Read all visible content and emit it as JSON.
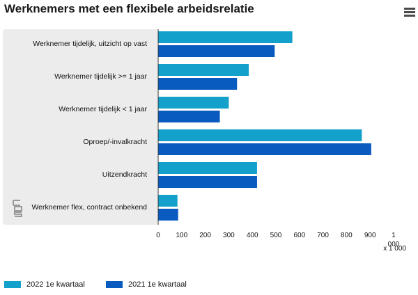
{
  "title": "Werknemers met een flexibele arbeidsrelatie",
  "menu_icon": "hamburger-menu-icon",
  "logo_icon": "cbs-logo-icon",
  "colors": {
    "series_2022": "#13a1cc",
    "series_2021": "#0a5bbf",
    "panel": "#ececec"
  },
  "chart_data": {
    "type": "bar",
    "orientation": "horizontal",
    "title": "Werknemers met een flexibele arbeidsrelatie",
    "categories": [
      "Werknemer tijdelijk, uitzicht op vast",
      "Werknemer tijdelijk >= 1 jaar",
      "Werknemer tijdelijk < 1 jaar",
      "Oproep/-invalkracht",
      "Uitzendkracht",
      "Werknemer flex, contract onbekend"
    ],
    "series": [
      {
        "name": "2022 1e kwartaal",
        "values": [
          570,
          385,
          300,
          865,
          420,
          82
        ]
      },
      {
        "name": "2021 1e kwartaal",
        "values": [
          495,
          335,
          262,
          905,
          420,
          85
        ]
      }
    ],
    "xlim": [
      0,
      1000
    ],
    "xticks": [
      "0",
      "100",
      "200",
      "300",
      "400",
      "500",
      "600",
      "700",
      "800",
      "900",
      "1 000"
    ],
    "xlabel": "x 1 000",
    "ylabel": "",
    "legend_position": "bottom-left"
  }
}
